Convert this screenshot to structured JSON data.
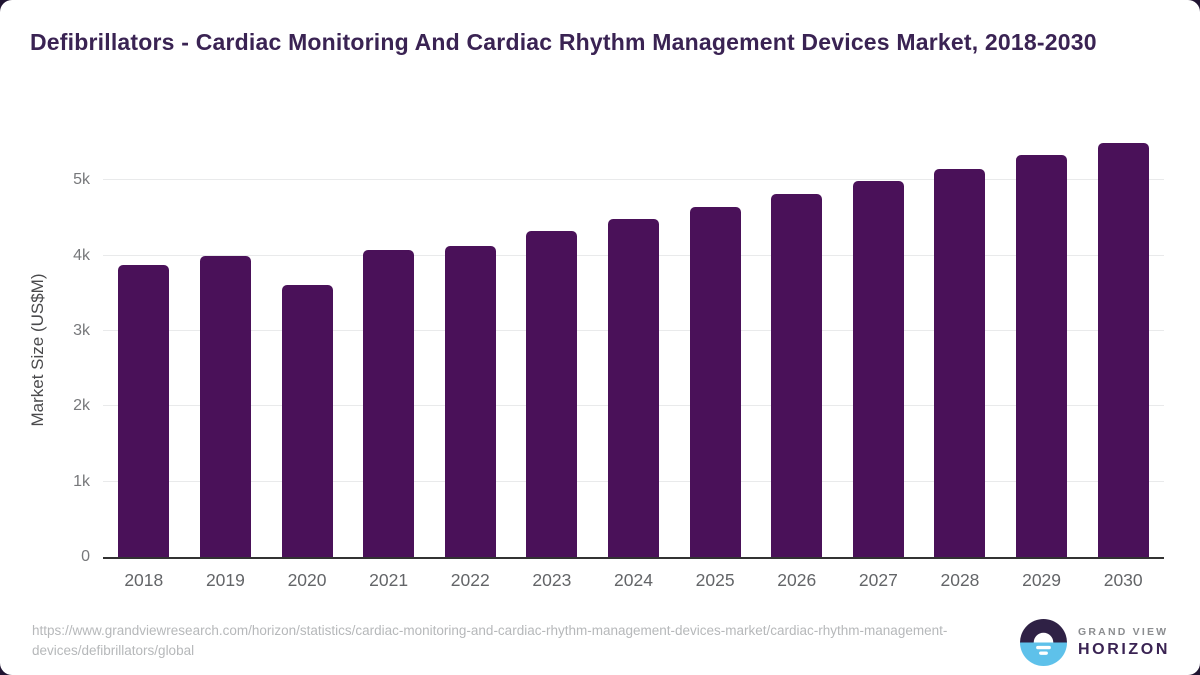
{
  "title": "Defibrillators - Cardiac Monitoring And Cardiac Rhythm Management Devices Market, 2018-2030",
  "source_url": "https://www.grandviewresearch.com/horizon/statistics/cardiac-monitoring-and-cardiac-rhythm-management-devices-market/cardiac-rhythm-management-devices/defibrillators/global",
  "logo": {
    "line1": "GRAND VIEW",
    "line2": "HORIZON"
  },
  "colors": {
    "bar": "#4a1159",
    "title": "#3a2353",
    "gridline": "#e9eaeb",
    "axis_line": "#323232",
    "tick_label": "#77787b",
    "year_label": "#636568",
    "url_text": "#b6b8ba",
    "logo_purple_dark": "#2f2145",
    "logo_blue": "#5ec1ea",
    "card_background": "#ffffff",
    "outside_background": "#201431"
  },
  "chart_data": {
    "type": "bar",
    "title": "Defibrillators - Cardiac Monitoring And Cardiac Rhythm Management Devices Market, 2018-2030",
    "categories": [
      "2018",
      "2019",
      "2020",
      "2021",
      "2022",
      "2023",
      "2024",
      "2025",
      "2026",
      "2027",
      "2028",
      "2029",
      "2030"
    ],
    "values": [
      3880,
      3990,
      3610,
      4080,
      4130,
      4320,
      4480,
      4650,
      4820,
      4990,
      5150,
      5330,
      5490
    ],
    "xlabel": "",
    "ylabel": "Market Size (US$M)",
    "ylim": [
      0,
      5600
    ],
    "yticks": [
      {
        "label": "0",
        "value": 0
      },
      {
        "label": "1k",
        "value": 1000
      },
      {
        "label": "2k",
        "value": 2000
      },
      {
        "label": "3k",
        "value": 3000
      },
      {
        "label": "4k",
        "value": 4000
      },
      {
        "label": "5k",
        "value": 5000
      }
    ],
    "grid": "horizontal",
    "legend": "none",
    "bar_color": "#4a1159"
  }
}
